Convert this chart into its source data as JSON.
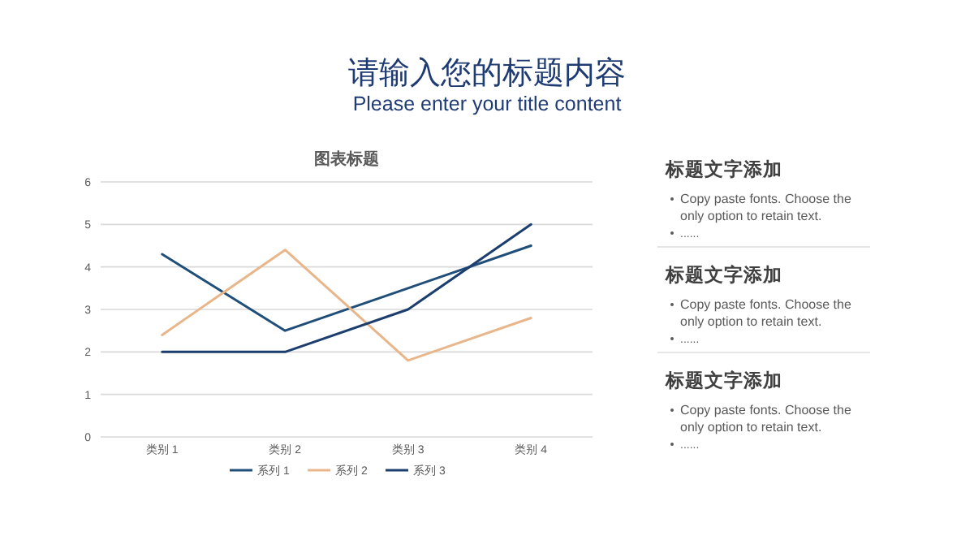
{
  "chart_data": [
    {
      "type": "line",
      "title": "图表标题",
      "categories": [
        "类别 1",
        "类别 2",
        "类别 3",
        "类别 4"
      ],
      "series": [
        {
          "name": "系列 1",
          "color": "#1f4e79",
          "values": [
            4.3,
            2.5,
            3.5,
            4.5
          ]
        },
        {
          "name": "系列 2",
          "color": "#e8b68a",
          "values": [
            2.4,
            4.4,
            1.8,
            2.8
          ]
        },
        {
          "name": "系列 3",
          "color": "#1b3e6f",
          "values": [
            2,
            2,
            3,
            5
          ]
        }
      ],
      "ylim": [
        0,
        6
      ],
      "yticks": [
        0,
        1,
        2,
        3,
        4,
        5,
        6
      ],
      "grid": "y",
      "legend": "bottom",
      "marker": "none",
      "line_style": "solid"
    },
    {
      "type": "other",
      "title": "请输入您的标题内容",
      "subtitle": "Please enter your title content",
      "annotations": [
        "标题文字添加",
        "Copy paste fonts. Choose the only option to retain text.",
        "......",
        "标题文字添加",
        "Copy paste fonts. Choose the only option to retain text.",
        "......",
        "标题文字添加",
        "Copy paste fonts. Choose the only option to retain text.",
        "......"
      ]
    }
  ]
}
